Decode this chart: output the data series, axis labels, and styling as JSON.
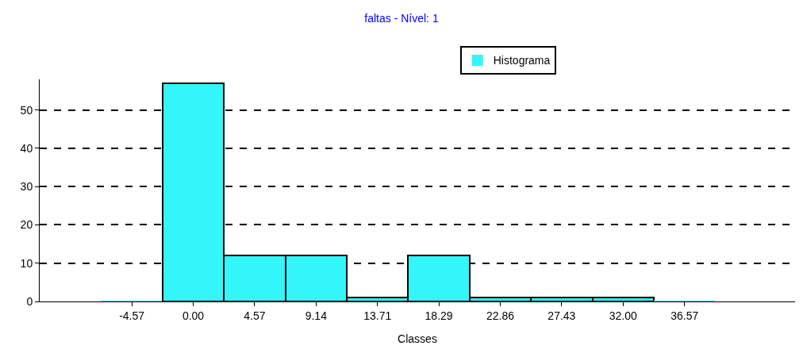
{
  "chart_data": {
    "type": "bar",
    "title": "faltas - Nível: 1",
    "xlabel": "Classes",
    "categories": [
      "-4.57",
      "0.00",
      "4.57",
      "9.14",
      "13.71",
      "18.29",
      "22.86",
      "27.43",
      "32.00",
      "36.57"
    ],
    "series": [
      {
        "name": "Histograma",
        "color": "#33f6fb",
        "values": [
          0,
          57,
          12,
          12,
          1,
          12,
          1,
          1,
          1,
          0
        ]
      }
    ],
    "ylim": [
      0,
      58
    ],
    "yticks": [
      0,
      10,
      20,
      30,
      40,
      50
    ],
    "grid": "y",
    "legend": "top"
  }
}
